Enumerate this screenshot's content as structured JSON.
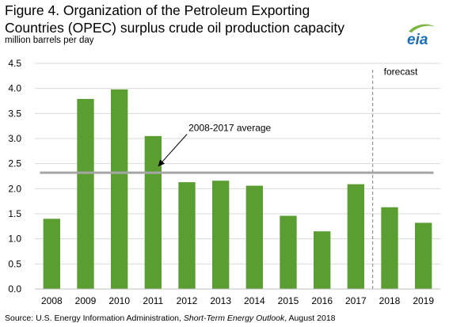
{
  "header": {
    "title_line1": "Figure 4. Organization of the Petroleum Exporting",
    "title_line2": "Countries (OPEC) surplus crude oil production capacity",
    "units": "million barrels per day"
  },
  "logo": {
    "text": "eia",
    "color": "#1b6fb5",
    "swoosh_color": "#7ab640"
  },
  "footer": {
    "source_prefix": "Source: U.S. Energy Information Administration, ",
    "source_title": "Short-Term Energy Outlook",
    "source_suffix": ", August 2018"
  },
  "chart_data": {
    "type": "bar",
    "categories": [
      "2008",
      "2009",
      "2010",
      "2011",
      "2012",
      "2013",
      "2014",
      "2015",
      "2016",
      "2017",
      "2018",
      "2019"
    ],
    "values": [
      1.4,
      3.79,
      3.98,
      3.05,
      2.13,
      2.16,
      2.06,
      1.46,
      1.15,
      2.09,
      1.63,
      1.32
    ],
    "ylim": [
      0,
      4.5
    ],
    "yticks": [
      "0.0",
      "0.5",
      "1.0",
      "1.5",
      "2.0",
      "2.5",
      "3.0",
      "3.5",
      "4.0",
      "4.5"
    ],
    "bar_color": "#5a9e32",
    "grid": true,
    "grid_color": "#d9d9d9",
    "average": {
      "label": "2008-2017  average",
      "value": 2.32,
      "color": "#a6a6a6"
    },
    "forecast": {
      "label": "forecast",
      "starts_after": "2017"
    }
  }
}
